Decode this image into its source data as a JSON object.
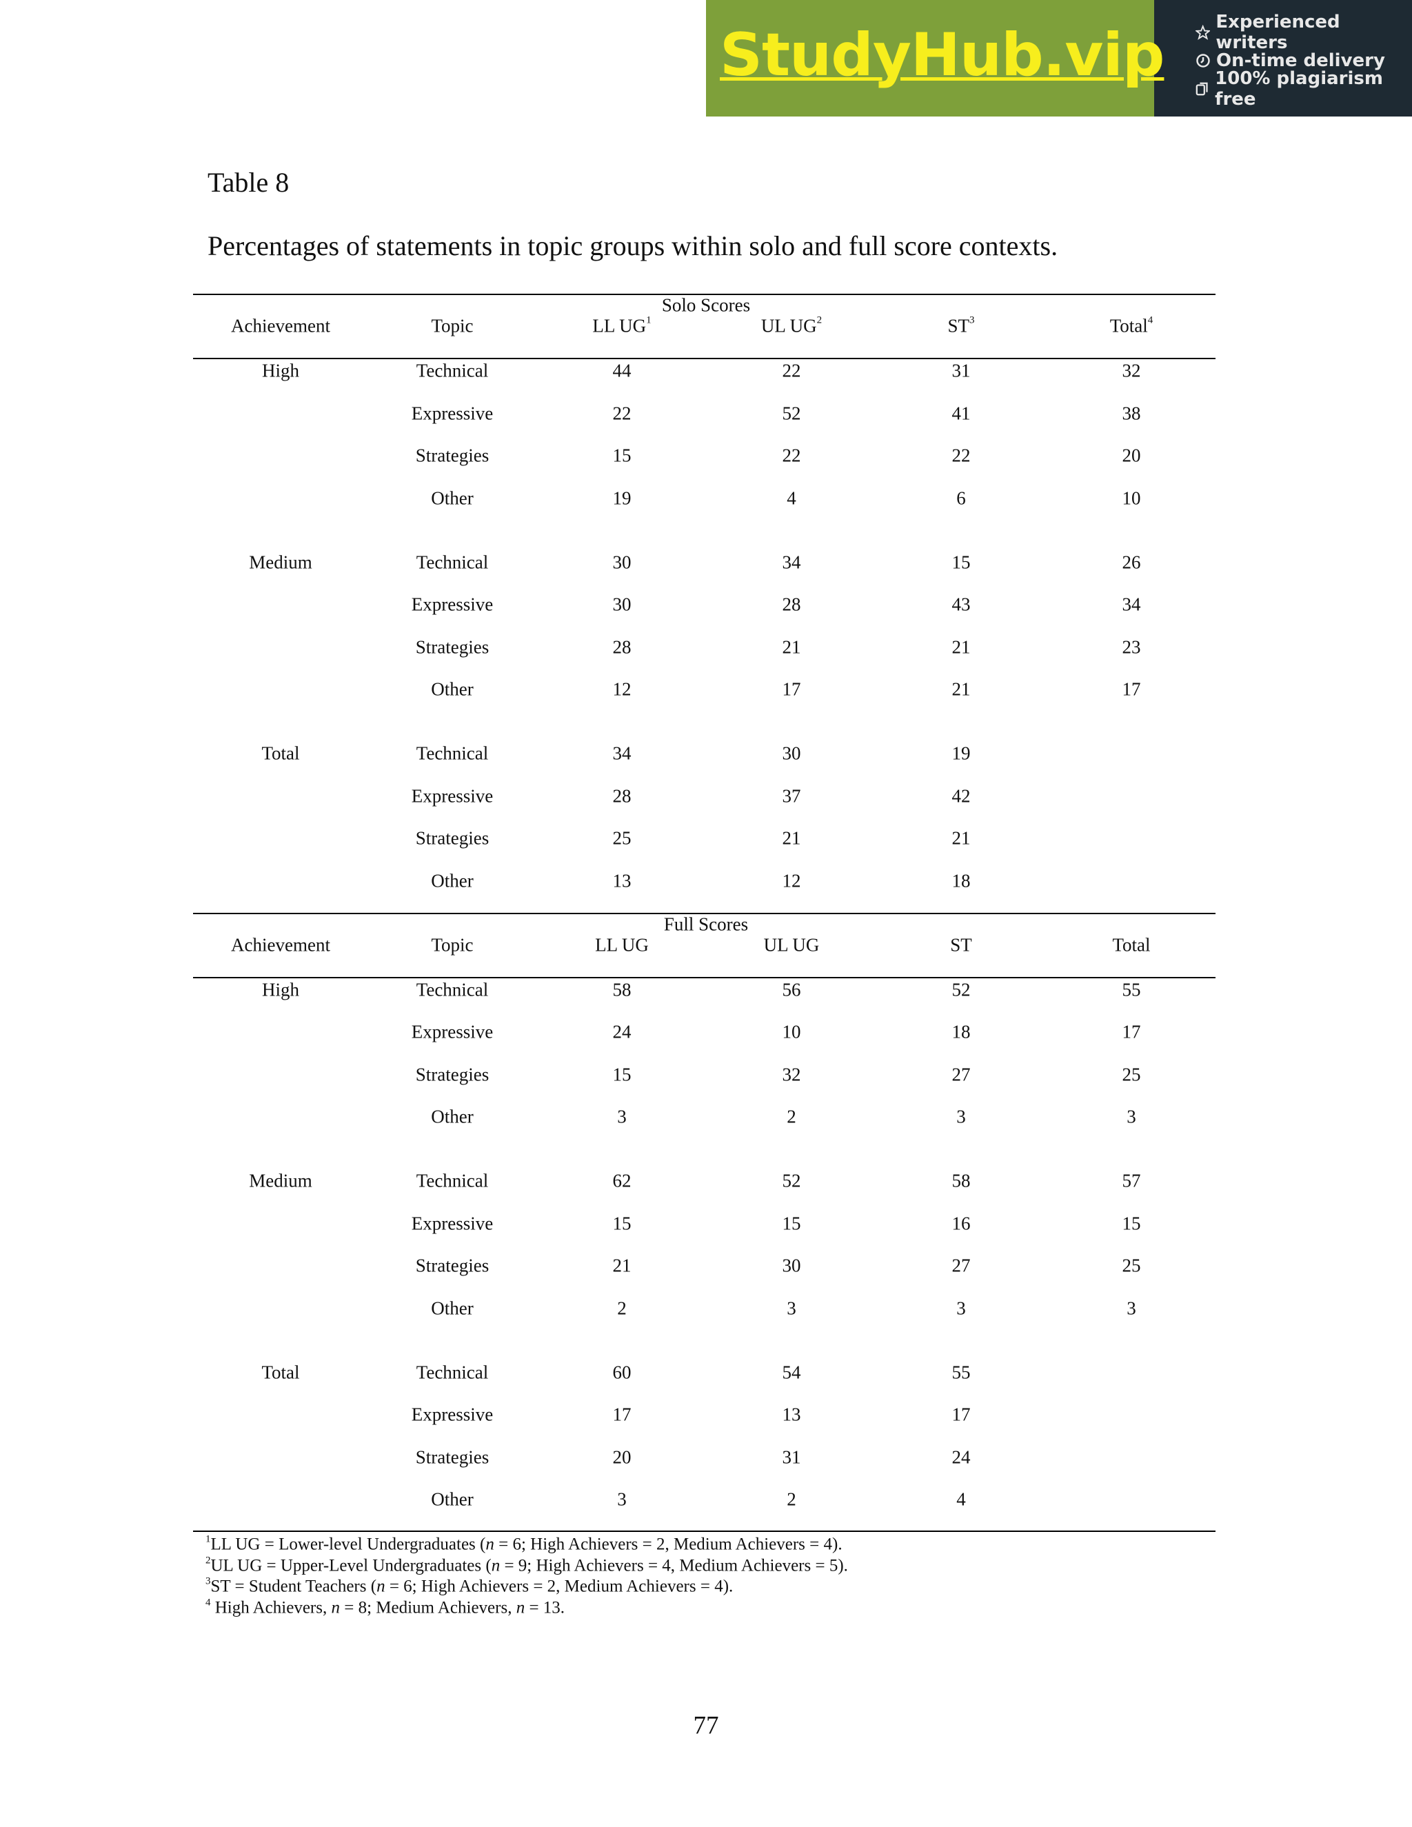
{
  "banner": {
    "brand": "StudyHub.vip",
    "features": [
      "Experienced writers",
      "On-time delivery",
      "100% plagiarism free"
    ]
  },
  "table_label": "Table 8",
  "caption": "Percentages of statements in topic groups within solo and full score contexts.",
  "sections": [
    {
      "title": "Solo Scores",
      "headers": [
        {
          "text": "Achievement"
        },
        {
          "text": "Topic"
        },
        {
          "text": "LL UG",
          "sup": "1"
        },
        {
          "text": "UL UG",
          "sup": "2"
        },
        {
          "text": "ST",
          "sup": "3"
        },
        {
          "text": "Total",
          "sup": "4"
        }
      ],
      "groups": [
        {
          "achievement": "High",
          "rows": [
            {
              "topic": "Technical",
              "values": [
                44,
                22,
                31,
                32
              ]
            },
            {
              "topic": "Expressive",
              "values": [
                22,
                52,
                41,
                38
              ]
            },
            {
              "topic": "Strategies",
              "values": [
                15,
                22,
                22,
                20
              ]
            },
            {
              "topic": "Other",
              "values": [
                19,
                4,
                6,
                10
              ]
            }
          ]
        },
        {
          "achievement": "Medium",
          "rows": [
            {
              "topic": "Technical",
              "values": [
                30,
                34,
                15,
                26
              ]
            },
            {
              "topic": "Expressive",
              "values": [
                30,
                28,
                43,
                34
              ]
            },
            {
              "topic": "Strategies",
              "values": [
                28,
                21,
                21,
                23
              ]
            },
            {
              "topic": "Other",
              "values": [
                12,
                17,
                21,
                17
              ]
            }
          ]
        },
        {
          "achievement": "Total",
          "rows": [
            {
              "topic": "Technical",
              "values": [
                34,
                30,
                19
              ]
            },
            {
              "topic": "Expressive",
              "values": [
                28,
                37,
                42
              ]
            },
            {
              "topic": "Strategies",
              "values": [
                25,
                21,
                21
              ]
            },
            {
              "topic": "Other",
              "values": [
                13,
                12,
                18
              ]
            }
          ]
        }
      ]
    },
    {
      "title": "Full Scores",
      "headers": [
        {
          "text": "Achievement"
        },
        {
          "text": "Topic"
        },
        {
          "text": "LL UG"
        },
        {
          "text": "UL UG"
        },
        {
          "text": "ST"
        },
        {
          "text": "Total"
        }
      ],
      "groups": [
        {
          "achievement": "High",
          "rows": [
            {
              "topic": "Technical",
              "values": [
                58,
                56,
                52,
                55
              ]
            },
            {
              "topic": "Expressive",
              "values": [
                24,
                10,
                18,
                17
              ]
            },
            {
              "topic": "Strategies",
              "values": [
                15,
                32,
                27,
                25
              ]
            },
            {
              "topic": "Other",
              "values": [
                3,
                2,
                3,
                3
              ]
            }
          ]
        },
        {
          "achievement": "Medium",
          "rows": [
            {
              "topic": "Technical",
              "values": [
                62,
                52,
                58,
                57
              ]
            },
            {
              "topic": "Expressive",
              "values": [
                15,
                15,
                16,
                15
              ]
            },
            {
              "topic": "Strategies",
              "values": [
                21,
                30,
                27,
                25
              ]
            },
            {
              "topic": "Other",
              "values": [
                2,
                3,
                3,
                3
              ]
            }
          ]
        },
        {
          "achievement": "Total",
          "rows": [
            {
              "topic": "Technical",
              "values": [
                60,
                54,
                55
              ]
            },
            {
              "topic": "Expressive",
              "values": [
                17,
                13,
                17
              ]
            },
            {
              "topic": "Strategies",
              "values": [
                20,
                31,
                24
              ]
            },
            {
              "topic": "Other",
              "values": [
                3,
                2,
                4
              ]
            }
          ]
        }
      ]
    }
  ],
  "footnotes": [
    {
      "marker": "1",
      "parts": [
        {
          "text": "LL UG = Lower-level Undergraduates ("
        },
        {
          "text": "n",
          "italic": true
        },
        {
          "text": " = 6; High Achievers = 2, Medium Achievers = 4)."
        }
      ]
    },
    {
      "marker": "2",
      "parts": [
        {
          "text": "UL UG = Upper-Level Undergraduates ("
        },
        {
          "text": "n",
          "italic": true
        },
        {
          "text": " = 9; High Achievers = 4, Medium Achievers = 5)."
        }
      ]
    },
    {
      "marker": "3",
      "parts": [
        {
          "text": "ST = Student Teachers ("
        },
        {
          "text": "n",
          "italic": true
        },
        {
          "text": " = 6; High Achievers = 2, Medium Achievers = 4)."
        }
      ]
    },
    {
      "marker": "4",
      "parts": [
        {
          "text": " High Achievers, "
        },
        {
          "text": "n",
          "italic": true
        },
        {
          "text": " = 8; Medium Achievers, "
        },
        {
          "text": "n",
          "italic": true
        },
        {
          "text": " = 13."
        }
      ]
    }
  ],
  "page_number": "77"
}
